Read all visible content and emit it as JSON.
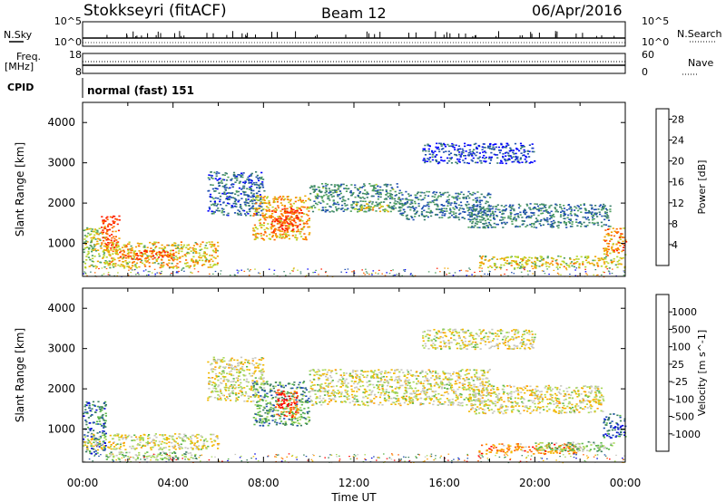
{
  "header": {
    "station": "Stokkseyri (fitACF)",
    "beam": "Beam 12",
    "date": "06/Apr/2016"
  },
  "aux_panels": {
    "nsky_label": "N.Sky",
    "nsearch_label": "N.Search",
    "freq_label_top": "Freq.",
    "freq_label_unit": "[MHz]",
    "nave_label": "Nave",
    "cpid_label": "CPID",
    "cpid_value": "normal (fast) 151",
    "noise_ticks_left": [
      "10^5",
      "10^0"
    ],
    "noise_ticks_right": [
      "10^5",
      "10^0"
    ],
    "freq_ticks": [
      "18",
      "8"
    ],
    "nave_ticks": [
      "60",
      "0"
    ]
  },
  "colors": {
    "power_scale": [
      "#0000ff",
      "#1f4fb0",
      "#3a7f6e",
      "#4fa060",
      "#b7d52c",
      "#f0a500",
      "#ff6a00",
      "#ff1e00"
    ],
    "velocity_scale": [
      "#ff0000",
      "#ff5a00",
      "#ff9a00",
      "#f2b800",
      "#c8c8c0",
      "#a8d858",
      "#5ab648",
      "#3a8060",
      "#1e4db0",
      "#0000dd"
    ]
  },
  "chart_data": [
    {
      "type": "heatmap",
      "name": "power",
      "xlabel": "Time UT",
      "ylabel": "Slant Range [km]",
      "xlim": [
        0,
        24
      ],
      "ylim": [
        180,
        4500
      ],
      "y_ticks": [
        "1000",
        "2000",
        "3000",
        "4000"
      ],
      "x_tick_labels": [
        "00:00",
        "04:00",
        "08:00",
        "12:00",
        "16:00",
        "20:00",
        "00:00"
      ],
      "colorbar": {
        "label": "Power [dB]",
        "ticks": [
          "4",
          "8",
          "12",
          "16",
          "20",
          "24",
          "28"
        ],
        "range": [
          0,
          30
        ]
      },
      "regions": [
        {
          "t0": 0.0,
          "t1": 1.0,
          "r0": 400,
          "r1": 1400,
          "level": 0.55
        },
        {
          "t0": 0.8,
          "t1": 1.6,
          "r0": 800,
          "r1": 1700,
          "level": 0.9
        },
        {
          "t0": 1.0,
          "t1": 6.0,
          "r0": 400,
          "r1": 1050,
          "level": 0.65
        },
        {
          "t0": 1.5,
          "t1": 4.0,
          "r0": 600,
          "r1": 850,
          "level": 0.85
        },
        {
          "t0": 5.5,
          "t1": 8.0,
          "r0": 1700,
          "r1": 2800,
          "level": 0.25
        },
        {
          "t0": 7.5,
          "t1": 10.0,
          "r0": 1100,
          "r1": 2200,
          "level": 0.7
        },
        {
          "t0": 8.3,
          "t1": 9.7,
          "r0": 1300,
          "r1": 1900,
          "level": 0.95
        },
        {
          "t0": 10.0,
          "t1": 14.0,
          "r0": 1800,
          "r1": 2500,
          "level": 0.35
        },
        {
          "t0": 12.0,
          "t1": 13.5,
          "r0": 1800,
          "r1": 2000,
          "level": 0.6
        },
        {
          "t0": 14.0,
          "t1": 18.0,
          "r0": 1600,
          "r1": 2300,
          "level": 0.3
        },
        {
          "t0": 15.0,
          "t1": 20.0,
          "r0": 3000,
          "r1": 3500,
          "level": 0.15
        },
        {
          "t0": 17.0,
          "t1": 23.3,
          "r0": 1400,
          "r1": 2000,
          "level": 0.3
        },
        {
          "t0": 17.5,
          "t1": 24.0,
          "r0": 400,
          "r1": 700,
          "level": 0.6
        },
        {
          "t0": 23.0,
          "t1": 24.0,
          "r0": 700,
          "r1": 1400,
          "level": 0.75
        }
      ]
    },
    {
      "type": "heatmap",
      "name": "velocity",
      "xlabel": "Time UT",
      "ylabel": "Slant Range [km]",
      "xlim": [
        0,
        24
      ],
      "ylim": [
        180,
        4500
      ],
      "y_ticks": [
        "1000",
        "2000",
        "3000",
        "4000"
      ],
      "x_tick_labels": [
        "00:00",
        "04:00",
        "08:00",
        "12:00",
        "16:00",
        "20:00",
        "00:00"
      ],
      "colorbar": {
        "label": "Velocity [m s^-1]",
        "ticks": [
          "1000",
          "500",
          "100",
          "25",
          "-25",
          "-100",
          "-500",
          "-1000"
        ]
      },
      "regions": [
        {
          "t0": 0.0,
          "t1": 1.0,
          "r0": 400,
          "r1": 1700,
          "level": 0.78
        },
        {
          "t0": 0.0,
          "t1": 6.0,
          "r0": 500,
          "r1": 900,
          "level": 0.45
        },
        {
          "t0": 1.0,
          "t1": 5.0,
          "r0": 250,
          "r1": 450,
          "level": 0.6
        },
        {
          "t0": 5.5,
          "t1": 8.0,
          "r0": 1700,
          "r1": 2800,
          "level": 0.45
        },
        {
          "t0": 7.5,
          "t1": 10.0,
          "r0": 1100,
          "r1": 2200,
          "level": 0.7
        },
        {
          "t0": 8.5,
          "t1": 9.5,
          "r0": 1300,
          "r1": 2000,
          "level": 0.1
        },
        {
          "t0": 10.0,
          "t1": 18.0,
          "r0": 1600,
          "r1": 2500,
          "level": 0.45
        },
        {
          "t0": 15.0,
          "t1": 20.0,
          "r0": 3000,
          "r1": 3500,
          "level": 0.45
        },
        {
          "t0": 17.0,
          "t1": 23.0,
          "r0": 1400,
          "r1": 2100,
          "level": 0.45
        },
        {
          "t0": 17.5,
          "t1": 22.0,
          "r0": 400,
          "r1": 650,
          "level": 0.25
        },
        {
          "t0": 20.0,
          "t1": 23.5,
          "r0": 450,
          "r1": 700,
          "level": 0.6
        },
        {
          "t0": 23.0,
          "t1": 24.0,
          "r0": 800,
          "r1": 1400,
          "level": 0.8
        }
      ]
    }
  ]
}
